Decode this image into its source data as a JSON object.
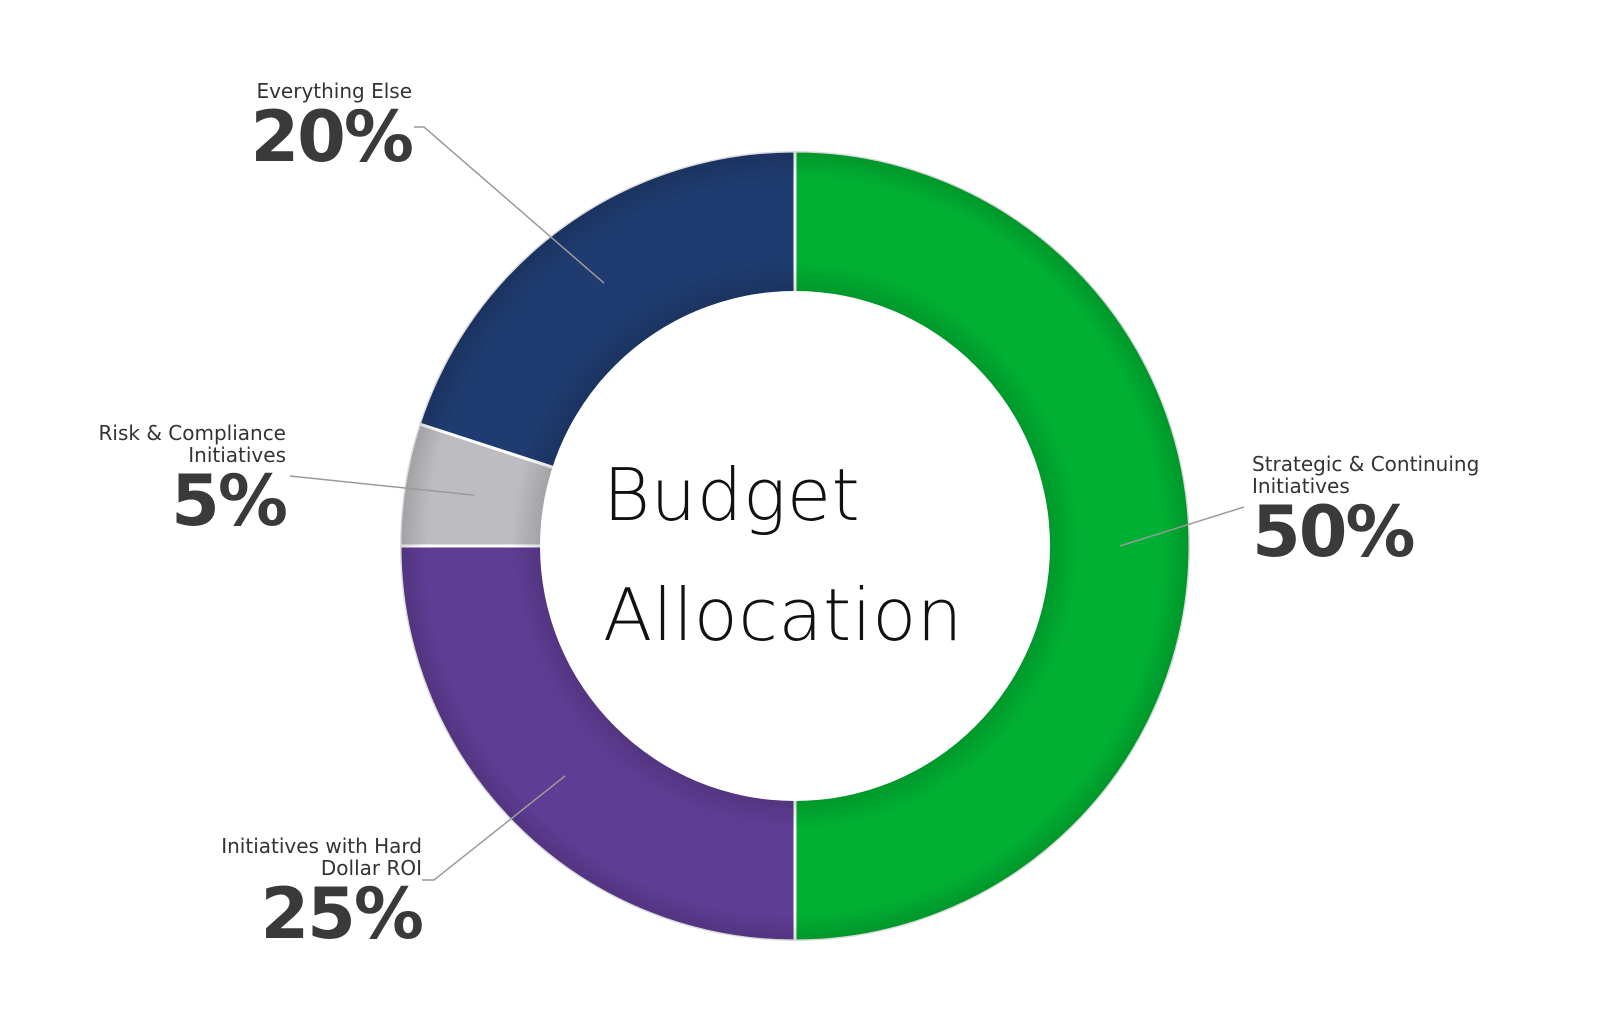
{
  "chart_data": {
    "type": "pie",
    "title": "Budget Allocation",
    "title_lines": [
      "Budget",
      "Allocation"
    ],
    "slices": [
      {
        "label": "Strategic & Continuing Initiatives",
        "value": 50,
        "value_label": "50%",
        "color": "#00b032"
      },
      {
        "label": "Initiatives with Hard Dollar ROI",
        "value": 25,
        "value_label": "25%",
        "color": "#603d95"
      },
      {
        "label": "Risk & Compliance Initiatives",
        "value": 5,
        "value_label": "5%",
        "color": "#bdbdc1"
      },
      {
        "label": "Everything Else",
        "value": 20,
        "value_label": "20%",
        "color": "#1f3b6f"
      }
    ]
  },
  "callouts": {
    "strategic": {
      "label_lines": [
        "Strategic & Continuing",
        "Initiatives"
      ],
      "pct": "50%"
    },
    "hard_dollar": {
      "label_lines": [
        "Initiatives with Hard",
        "Dollar ROI"
      ],
      "pct": "25%"
    },
    "risk": {
      "label_lines": [
        "Risk & Compliance",
        "Initiatives"
      ],
      "pct": "5%"
    },
    "everything": {
      "label_lines": [
        "Everything Else"
      ],
      "pct": "20%"
    }
  }
}
